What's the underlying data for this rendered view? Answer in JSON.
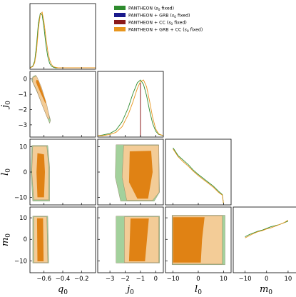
{
  "chart_data": {
    "type": "corner",
    "parameters": [
      {
        "name": "q_0",
        "display": "q",
        "sub": "0",
        "range": [
          -0.75,
          -0.05
        ],
        "ticks": [
          -0.6,
          -0.4,
          -0.2
        ],
        "tick_labels": [
          "−0.6",
          "−0.4",
          "−0.2"
        ]
      },
      {
        "name": "j_0",
        "display": "j",
        "sub": "0",
        "range": [
          -3.8,
          0.5
        ],
        "ticks": [
          -3,
          -2,
          -1,
          0
        ],
        "tick_labels": [
          "−3",
          "−2",
          "−1",
          "0"
        ]
      },
      {
        "name": "l_0",
        "display": "l",
        "sub": "0",
        "range": [
          -13,
          13
        ],
        "ticks": [
          -10,
          0,
          10
        ],
        "tick_labels": [
          "−10",
          "0",
          "10"
        ]
      },
      {
        "name": "m_0",
        "display": "m",
        "sub": "0",
        "range": [
          -15.5,
          15
        ],
        "ticks": [
          -10,
          0,
          10
        ],
        "tick_labels": [
          "−10",
          "0",
          "10"
        ]
      }
    ],
    "legend": {
      "placement": "top-right",
      "entries": [
        {
          "label": "PANTHEON (",
          "sym": "s",
          "sub": "0",
          "tail": " fixed)",
          "color": "#2e8b2e"
        },
        {
          "label": "PANTHEON + GRB (",
          "sym": "s",
          "sub": "0",
          "tail": " fixed)",
          "color": "#1a1a8c"
        },
        {
          "label": "PANTHEON + CC (",
          "sym": "s",
          "sub": "0",
          "tail": " fixed)",
          "color": "#8b1a1a"
        },
        {
          "label": "PANTHEON + GRB + CC (",
          "sym": "s",
          "sub": "0",
          "tail": " fixed)",
          "color": "#e8961e"
        }
      ]
    },
    "colors": {
      "green": "#2e8b2e",
      "green_outer": "#a3d19c",
      "green_inner": "#5aa64c",
      "orange": "#e8961e",
      "orange_outer": "#f3cc97",
      "orange_inner": "#e08214",
      "dark_red": "#8b1a1a"
    },
    "marginals": [
      {
        "param": "q_0",
        "x": [
          -0.75,
          -0.72,
          -0.7,
          -0.68,
          -0.66,
          -0.64,
          -0.62,
          -0.6,
          -0.58,
          -0.56,
          -0.54,
          -0.52,
          -0.5,
          -0.48,
          -0.45,
          -0.05
        ],
        "series": [
          {
            "name": "PANTHEON (s0 fixed)",
            "color": "#2e8b2e",
            "y": [
              0,
              0.03,
              0.12,
              0.4,
              0.8,
              0.98,
              0.95,
              0.72,
              0.42,
              0.2,
              0.08,
              0.03,
              0.01,
              0,
              0,
              0
            ]
          },
          {
            "name": "PANTHEON + GRB + CC (s0 fixed)",
            "color": "#e8961e",
            "y": [
              0,
              0.02,
              0.09,
              0.3,
              0.7,
              0.96,
              1.0,
              0.82,
              0.55,
              0.3,
              0.14,
              0.06,
              0.02,
              0.01,
              0,
              0
            ]
          }
        ]
      },
      {
        "param": "j_0",
        "x": [
          -3.8,
          -3.5,
          -3.0,
          -2.6,
          -2.2,
          -1.8,
          -1.5,
          -1.2,
          -1.0,
          -0.8,
          -0.6,
          -0.4,
          -0.2,
          0.0,
          0.2,
          0.5
        ],
        "series": [
          {
            "name": "PANTHEON (s0 fixed)",
            "color": "#2e8b2e",
            "y": [
              0,
              0.01,
              0.04,
              0.1,
              0.25,
              0.5,
              0.75,
              0.95,
              1.0,
              0.92,
              0.72,
              0.45,
              0.22,
              0.08,
              0.02,
              0
            ]
          },
          {
            "name": "PANTHEON + GRB + CC (s0 fixed)",
            "color": "#e8961e",
            "y": [
              0,
              0,
              0.02,
              0.06,
              0.16,
              0.38,
              0.6,
              0.85,
              0.97,
              1.0,
              0.88,
              0.62,
              0.33,
              0.12,
              0.03,
              0
            ]
          },
          {
            "name": "PANTHEON + CC (s0 fixed)",
            "color": "#8b1a1a",
            "spike_at": -1.0,
            "height": 0.95
          }
        ]
      },
      {
        "param": "l_0",
        "x": [
          -10,
          -8,
          -6,
          -4,
          -2,
          0,
          2,
          4,
          6,
          8,
          9.5,
          10
        ],
        "series": [
          {
            "name": "PANTHEON (s0 fixed)",
            "color": "#2e8b2e",
            "y": [
              1.0,
              0.86,
              0.78,
              0.7,
              0.6,
              0.52,
              0.45,
              0.38,
              0.31,
              0.22,
              0.16,
              0
            ]
          },
          {
            "name": "PANTHEON + GRB + CC (s0 fixed)",
            "color": "#e8961e",
            "y": [
              0.98,
              0.84,
              0.75,
              0.67,
              0.58,
              0.5,
              0.43,
              0.36,
              0.29,
              0.2,
              0.15,
              0
            ]
          }
        ]
      },
      {
        "param": "m_0",
        "x": [
          -10,
          -8,
          -6,
          -4,
          -2,
          0,
          2,
          4,
          6,
          8,
          10
        ],
        "series": [
          {
            "name": "PANTHEON (s0 fixed)",
            "color": "#2e8b2e",
            "y": [
              0.62,
              0.66,
              0.69,
              0.72,
              0.74,
              0.77,
              0.8,
              0.82,
              0.84,
              0.87,
              0.9
            ]
          },
          {
            "name": "PANTHEON + GRB + CC (s0 fixed)",
            "color": "#e8961e",
            "y": [
              0.6,
              0.64,
              0.68,
              0.71,
              0.73,
              0.76,
              0.78,
              0.81,
              0.84,
              0.87,
              0.92
            ]
          }
        ]
      }
    ],
    "contours": [
      {
        "x_param": "q_0",
        "y_param": "j_0",
        "regions": [
          {
            "series": "PANTHEON (s0 fixed)",
            "level": "95%",
            "fill": "#a3d19c",
            "points": [
              [
                -0.72,
                0.15
              ],
              [
                -0.69,
                0.25
              ],
              [
                -0.64,
                -0.4
              ],
              [
                -0.58,
                -1.6
              ],
              [
                -0.53,
                -2.7
              ],
              [
                -0.54,
                -2.9
              ],
              [
                -0.6,
                -2.0
              ],
              [
                -0.67,
                -0.9
              ],
              [
                -0.73,
                -0.1
              ]
            ]
          },
          {
            "series": "PANTHEON + GRB + CC (s0 fixed)",
            "level": "95%",
            "fill": "#f3cc97",
            "points": [
              [
                -0.72,
                0.1
              ],
              [
                -0.68,
                0.2
              ],
              [
                -0.63,
                -0.5
              ],
              [
                -0.57,
                -1.7
              ],
              [
                -0.54,
                -2.6
              ],
              [
                -0.56,
                -2.6
              ],
              [
                -0.62,
                -1.7
              ],
              [
                -0.68,
                -0.7
              ],
              [
                -0.72,
                -0.2
              ]
            ]
          },
          {
            "series": "PANTHEON + GRB + CC (s0 fixed)",
            "level": "68%",
            "fill": "#e08214",
            "points": [
              [
                -0.68,
                -0.05
              ],
              [
                -0.66,
                -0.1
              ],
              [
                -0.62,
                -0.8
              ],
              [
                -0.58,
                -1.5
              ],
              [
                -0.585,
                -1.6
              ],
              [
                -0.63,
                -1.0
              ],
              [
                -0.67,
                -0.45
              ],
              [
                -0.685,
                -0.2
              ]
            ]
          }
        ]
      },
      {
        "x_param": "q_0",
        "y_param": "l_0",
        "regions": [
          {
            "series": "PANTHEON (s0 fixed)",
            "level": "95%",
            "fill": "#a3d19c",
            "points": [
              [
                -0.73,
                10.5
              ],
              [
                -0.56,
                10.5
              ],
              [
                -0.54,
                2
              ],
              [
                -0.54,
                -11.5
              ],
              [
                -0.72,
                -11.5
              ],
              [
                -0.74,
                0
              ]
            ]
          },
          {
            "series": "PANTHEON + GRB + CC (s0 fixed)",
            "level": "95%",
            "fill": "#f3cc97",
            "points": [
              [
                -0.72,
                10.2
              ],
              [
                -0.57,
                10.2
              ],
              [
                -0.55,
                2
              ],
              [
                -0.55,
                -11
              ],
              [
                -0.71,
                -11
              ],
              [
                -0.73,
                0
              ]
            ]
          },
          {
            "series": "PANTHEON + GRB + CC (s0 fixed)",
            "level": "68%",
            "fill": "#e08214",
            "points": [
              [
                -0.67,
                7.5
              ],
              [
                -0.6,
                7.0
              ],
              [
                -0.59,
                0
              ],
              [
                -0.6,
                -10
              ],
              [
                -0.67,
                -10
              ],
              [
                -0.68,
                0
              ]
            ]
          }
        ]
      },
      {
        "x_param": "q_0",
        "y_param": "m_0",
        "regions": [
          {
            "series": "PANTHEON (s0 fixed)",
            "level": "95%",
            "fill": "#a3d19c",
            "points": [
              [
                -0.72,
                10.8
              ],
              [
                -0.56,
                10.8
              ],
              [
                -0.55,
                -11
              ],
              [
                -0.72,
                -11
              ]
            ]
          },
          {
            "series": "PANTHEON + GRB + CC (s0 fixed)",
            "level": "95%",
            "fill": "#f3cc97",
            "points": [
              [
                -0.71,
                10.5
              ],
              [
                -0.57,
                10.5
              ],
              [
                -0.56,
                -10.8
              ],
              [
                -0.71,
                -10.8
              ]
            ]
          },
          {
            "series": "PANTHEON + GRB + CC (s0 fixed)",
            "level": "68%",
            "fill": "#e08214",
            "points": [
              [
                -0.675,
                9.8
              ],
              [
                -0.61,
                9.8
              ],
              [
                -0.605,
                -10.2
              ],
              [
                -0.67,
                -10.2
              ]
            ]
          }
        ]
      },
      {
        "x_param": "j_0",
        "y_param": "l_0",
        "regions": [
          {
            "series": "PANTHEON (s0 fixed)",
            "level": "95%",
            "fill": "#a3d19c",
            "points": [
              [
                -2.6,
                10.8
              ],
              [
                0.2,
                10.8
              ],
              [
                0.25,
                -8
              ],
              [
                -0.1,
                -11.5
              ],
              [
                -2.3,
                -11.5
              ],
              [
                -2.65,
                -2
              ]
            ]
          },
          {
            "series": "PANTHEON + GRB + CC (s0 fixed)",
            "level": "95%",
            "fill": "#f3cc97",
            "points": [
              [
                -2.1,
                10.6
              ],
              [
                0.2,
                10.6
              ],
              [
                0.22,
                -8
              ],
              [
                -0.2,
                -11.2
              ],
              [
                -1.9,
                -11.2
              ],
              [
                -2.2,
                -2
              ]
            ]
          },
          {
            "series": "PANTHEON + GRB + CC (s0 fixed)",
            "level": "68%",
            "fill": "#e08214",
            "points": [
              [
                -1.7,
                8.2
              ],
              [
                -0.3,
                8.4
              ],
              [
                -0.2,
                0
              ],
              [
                -0.5,
                -10.5
              ],
              [
                -1.2,
                -10.5
              ],
              [
                -1.75,
                -4
              ]
            ]
          }
        ]
      },
      {
        "x_param": "j_0",
        "y_param": "m_0",
        "regions": [
          {
            "series": "PANTHEON (s0 fixed)",
            "level": "95%",
            "fill": "#a3d19c",
            "points": [
              [
                -2.6,
                10.8
              ],
              [
                0.25,
                10.8
              ],
              [
                0.25,
                -11
              ],
              [
                -2.6,
                -11
              ]
            ]
          },
          {
            "series": "PANTHEON + GRB + CC (s0 fixed)",
            "level": "95%",
            "fill": "#f3cc97",
            "points": [
              [
                -2.05,
                10.5
              ],
              [
                0.2,
                10.5
              ],
              [
                0.2,
                -10.8
              ],
              [
                -2.05,
                -10.8
              ]
            ]
          },
          {
            "series": "PANTHEON + GRB + CC (s0 fixed)",
            "level": "68%",
            "fill": "#e08214",
            "points": [
              [
                -1.65,
                9.7
              ],
              [
                -0.45,
                9.7
              ],
              [
                -0.7,
                -10.2
              ],
              [
                -1.75,
                -10.2
              ]
            ]
          }
        ]
      },
      {
        "x_param": "l_0",
        "y_param": "m_0",
        "regions": [
          {
            "series": "PANTHEON (s0 fixed)",
            "level": "95%",
            "fill": "#a3d19c",
            "points": [
              [
                -10.4,
                11.2
              ],
              [
                10.6,
                11.2
              ],
              [
                10.6,
                -11.8
              ],
              [
                -10.4,
                -11.8
              ]
            ]
          },
          {
            "series": "PANTHEON + GRB + CC (s0 fixed)",
            "level": "95%",
            "fill": "#f3cc97",
            "points": [
              [
                -10.2,
                11
              ],
              [
                9.5,
                11
              ],
              [
                9.5,
                -11.5
              ],
              [
                -10.2,
                -11.5
              ]
            ]
          },
          {
            "series": "PANTHEON + GRB + CC (s0 fixed)",
            "level": "68%",
            "fill": "#e08214",
            "points": [
              [
                -10.0,
                10.3
              ],
              [
                2.5,
                10.3
              ],
              [
                1.5,
                0
              ],
              [
                1.0,
                -10.8
              ],
              [
                -10.0,
                -10.8
              ]
            ]
          }
        ]
      }
    ]
  }
}
